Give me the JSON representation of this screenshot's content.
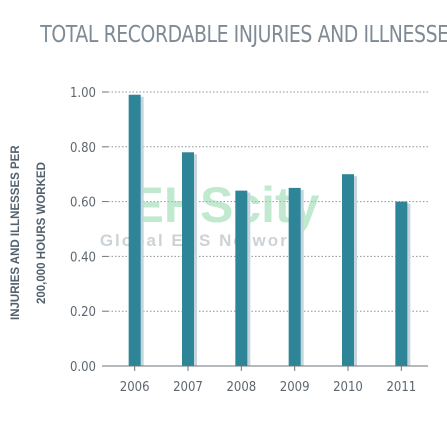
{
  "chart_data": {
    "type": "bar",
    "title": "TOTAL RECORDABLE INJURIES AND ILLNESSES",
    "ylabel_line1": "INJURIES AND ILLNESSES PER",
    "ylabel_line2": "200,000 HOURS WORKED",
    "categories": [
      "2006",
      "2007",
      "2008",
      "2009",
      "2010",
      "2011"
    ],
    "values": [
      0.99,
      0.78,
      0.64,
      0.65,
      0.7,
      0.6
    ],
    "ylim": [
      0,
      1.0
    ],
    "yticks": [
      "0.00",
      "0.20",
      "0.40",
      "0.60",
      "0.80",
      "1.00"
    ],
    "grid": true,
    "bar_color": "#2d8597",
    "bar_shadow_color": "#c4d6dc",
    "grid_color": "#8a959c"
  },
  "watermark": {
    "text_main": "EHScity",
    "text_sub": "Global EHS Network"
  }
}
